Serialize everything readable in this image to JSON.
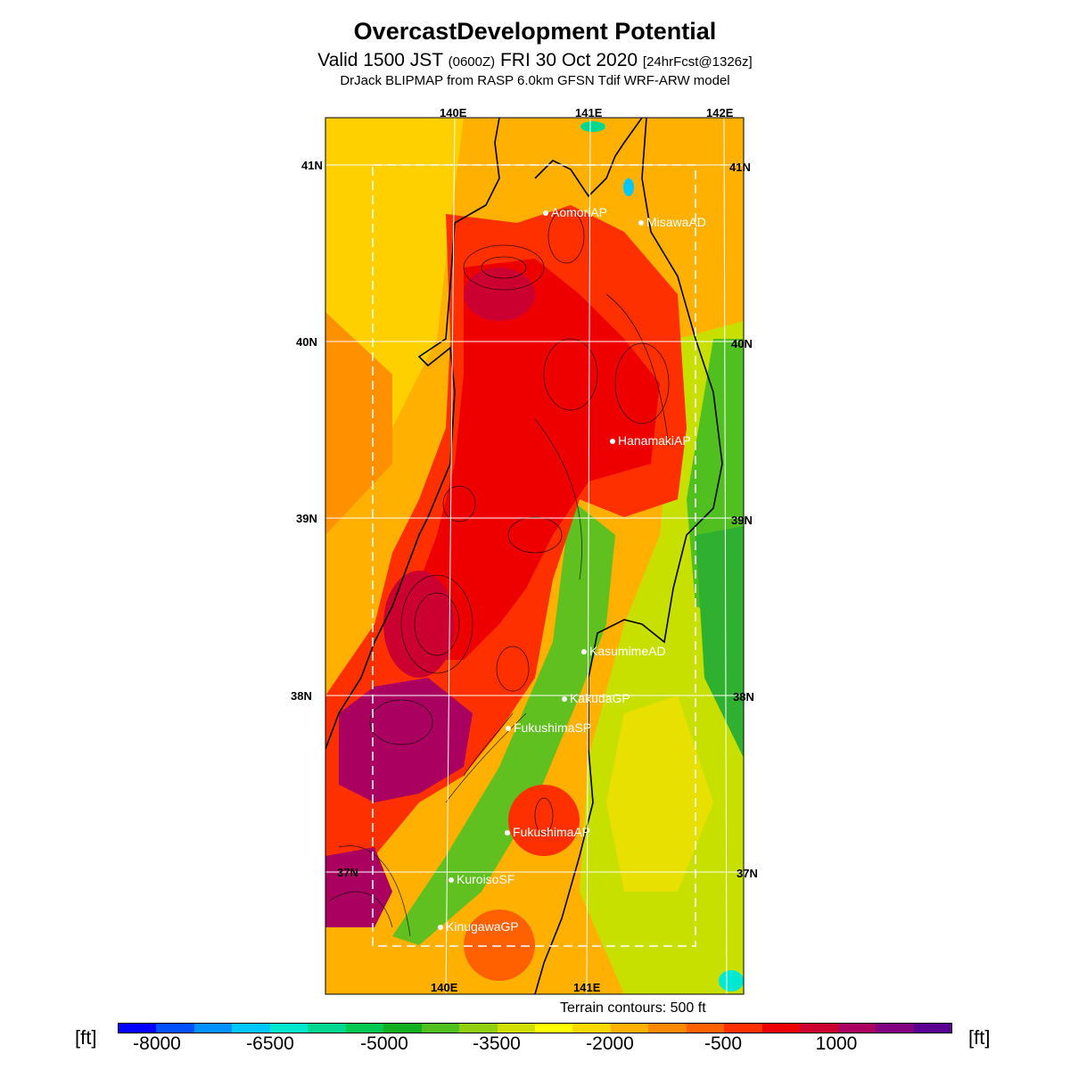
{
  "header": {
    "title": "OvercastDevelopment Potential",
    "valid_main": "Valid 1500 JST",
    "valid_zone": "(0600Z)",
    "valid_date": "FRI 30 Oct 2020",
    "valid_fcst": "[24hrFcst@1326z]",
    "model": "DrJack BLIPMAP from RASP 6.0km GFSN Tdif WRF-ARW model"
  },
  "map": {
    "lon_labels_top": [
      "140E",
      "141E",
      "142E"
    ],
    "lon_labels_bottom": [
      "140E",
      "141E"
    ],
    "lat_labels_left": [
      "41N",
      "40N",
      "39N",
      "38N",
      "37N"
    ],
    "lat_labels_right": [
      "41N",
      "40N",
      "39N",
      "38N",
      "37N"
    ],
    "stations": [
      {
        "name": "AomoriAP"
      },
      {
        "name": "MisawaAD"
      },
      {
        "name": "HanamakiAP"
      },
      {
        "name": "KasumimeAD"
      },
      {
        "name": "KakudaGP"
      },
      {
        "name": "FukushimaSP"
      },
      {
        "name": "FukushimaAP"
      },
      {
        "name": "KuroisoSF"
      },
      {
        "name": "KinugawaGP"
      }
    ],
    "terrain_note": "Terrain contours: 500 ft"
  },
  "colorbar": {
    "unit_left": "[ft]",
    "unit_right": "[ft]",
    "tick_labels": [
      "-8000",
      "-6500",
      "-5000",
      "-3500",
      "-2000",
      "-500",
      "1000"
    ],
    "colors": [
      "#0000ff",
      "#0050ff",
      "#0090ff",
      "#00c8ff",
      "#00e8d0",
      "#00d890",
      "#00c850",
      "#10b020",
      "#50c020",
      "#90d010",
      "#d0e000",
      "#ffff00",
      "#ffd800",
      "#ffb000",
      "#ff8800",
      "#ff6000",
      "#ff3000",
      "#ee0000",
      "#cc0030",
      "#aa0060",
      "#800080",
      "#5a0090"
    ]
  }
}
